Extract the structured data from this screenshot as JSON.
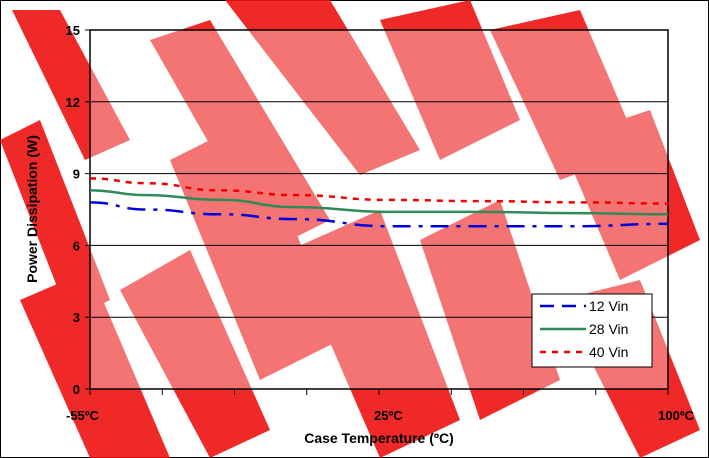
{
  "chart_data": {
    "type": "line",
    "xlabel": "Case Temperature (ºC)",
    "ylabel": "Power Dissipation (W)",
    "x_tick_labels": [
      "-55ºC",
      "25ºC",
      "100ºC"
    ],
    "x_tick_values": [
      -55,
      25,
      100
    ],
    "xlim": [
      -55,
      100
    ],
    "ylim": [
      0,
      15
    ],
    "y_ticks": [
      0,
      3,
      6,
      9,
      12,
      15
    ],
    "grid": "horizontal",
    "legend_position": "bottom-right",
    "series": [
      {
        "name": "12 Vin",
        "color": "#0000dd",
        "dash": "dash-dot",
        "x": [
          -55,
          -40,
          -20,
          0,
          25,
          50,
          75,
          100
        ],
        "y": [
          7.8,
          7.5,
          7.3,
          7.1,
          6.8,
          6.8,
          6.8,
          6.9
        ]
      },
      {
        "name": "28 Vin",
        "color": "#2e8b57",
        "dash": "solid",
        "x": [
          -55,
          -40,
          -20,
          0,
          25,
          50,
          75,
          100
        ],
        "y": [
          8.3,
          8.1,
          7.9,
          7.6,
          7.4,
          7.4,
          7.35,
          7.3
        ]
      },
      {
        "name": "40 Vin",
        "color": "#ee0000",
        "dash": "dotted",
        "x": [
          -55,
          -40,
          -20,
          0,
          25,
          50,
          75,
          100
        ],
        "y": [
          8.8,
          8.6,
          8.3,
          8.1,
          7.9,
          7.85,
          7.8,
          7.75
        ]
      }
    ]
  }
}
